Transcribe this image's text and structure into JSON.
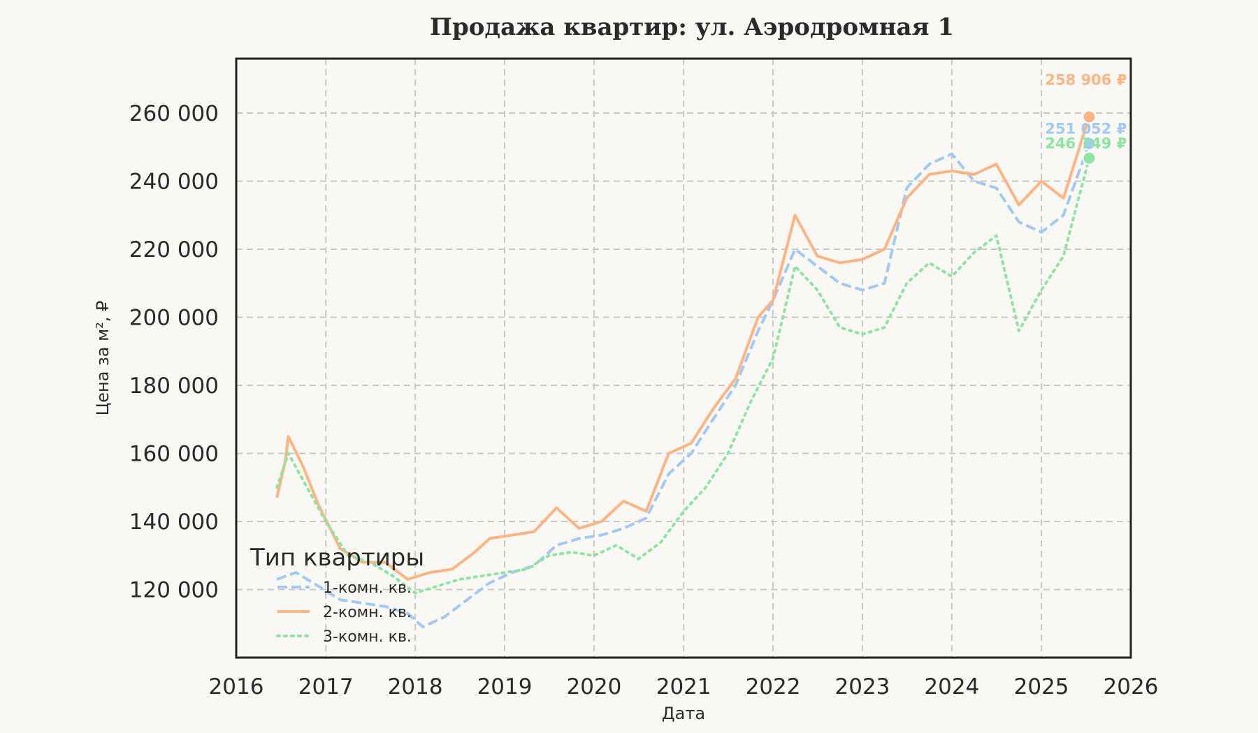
{
  "chart_data": {
    "type": "line",
    "title": "Продажа квартир: ул. Аэродромная 1",
    "xlabel": "Дата",
    "ylabel": "Цена за м², ₽",
    "xlim": [
      "2016-01-01",
      "2026-01-01"
    ],
    "ylim": [
      100000,
      276000
    ],
    "x_ticks": [
      "2016",
      "2017",
      "2018",
      "2019",
      "2020",
      "2021",
      "2022",
      "2023",
      "2024",
      "2025",
      "2026"
    ],
    "y_ticks": [
      120000,
      140000,
      160000,
      180000,
      200000,
      220000,
      240000,
      260000
    ],
    "y_tick_labels": [
      "120 000",
      "140 000",
      "160 000",
      "180 000",
      "200 000",
      "220 000",
      "240 000",
      "260 000"
    ],
    "grid": true,
    "legend": {
      "title": "Тип квартиры",
      "position": "bottom-left",
      "entries": [
        "1-комн. кв.",
        "2-комн. кв.",
        "3-комн. кв."
      ]
    },
    "series": [
      {
        "name": "1-комн. кв.",
        "color": "#a1c9f4",
        "style": "dashed",
        "points": [
          [
            "2016-06-15",
            123000
          ],
          [
            "2016-09-01",
            125000
          ],
          [
            "2016-12-01",
            121000
          ],
          [
            "2017-03-01",
            117000
          ],
          [
            "2017-06-01",
            116000
          ],
          [
            "2017-09-01",
            115000
          ],
          [
            "2017-12-01",
            113000
          ],
          [
            "2018-02-01",
            109000
          ],
          [
            "2018-05-01",
            112000
          ],
          [
            "2018-08-01",
            117000
          ],
          [
            "2018-11-01",
            122000
          ],
          [
            "2019-02-01",
            125000
          ],
          [
            "2019-05-01",
            127000
          ],
          [
            "2019-08-01",
            133000
          ],
          [
            "2019-11-01",
            135000
          ],
          [
            "2020-02-01",
            136000
          ],
          [
            "2020-05-01",
            138000
          ],
          [
            "2020-08-01",
            141000
          ],
          [
            "2020-11-01",
            154000
          ],
          [
            "2021-02-01",
            160000
          ],
          [
            "2021-05-01",
            170000
          ],
          [
            "2021-08-01",
            180000
          ],
          [
            "2021-11-01",
            196000
          ],
          [
            "2022-01-01",
            205000
          ],
          [
            "2022-04-01",
            220000
          ],
          [
            "2022-07-01",
            215000
          ],
          [
            "2022-10-01",
            210000
          ],
          [
            "2023-01-01",
            208000
          ],
          [
            "2023-04-01",
            210000
          ],
          [
            "2023-07-01",
            238000
          ],
          [
            "2023-10-01",
            245000
          ],
          [
            "2024-01-01",
            248000
          ],
          [
            "2024-04-01",
            240000
          ],
          [
            "2024-07-01",
            238000
          ],
          [
            "2024-10-01",
            228000
          ],
          [
            "2025-01-01",
            225000
          ],
          [
            "2025-04-01",
            230000
          ],
          [
            "2025-07-15",
            251052
          ]
        ],
        "last_value": 251052,
        "last_label": "251 052 ₽"
      },
      {
        "name": "2-комн. кв.",
        "color": "#ffb482",
        "style": "solid",
        "points": [
          [
            "2016-06-15",
            147000
          ],
          [
            "2016-07-20",
            158000
          ],
          [
            "2016-08-01",
            165000
          ],
          [
            "2016-10-01",
            156000
          ],
          [
            "2016-12-01",
            145000
          ],
          [
            "2017-03-01",
            132000
          ],
          [
            "2017-06-01",
            128000
          ],
          [
            "2017-09-01",
            128000
          ],
          [
            "2017-12-01",
            123000
          ],
          [
            "2018-03-01",
            125000
          ],
          [
            "2018-06-01",
            126000
          ],
          [
            "2018-09-01",
            131000
          ],
          [
            "2018-11-01",
            135000
          ],
          [
            "2019-02-01",
            136000
          ],
          [
            "2019-05-01",
            137000
          ],
          [
            "2019-08-01",
            144000
          ],
          [
            "2019-11-01",
            138000
          ],
          [
            "2020-02-01",
            140000
          ],
          [
            "2020-05-01",
            146000
          ],
          [
            "2020-08-01",
            143000
          ],
          [
            "2020-11-01",
            160000
          ],
          [
            "2021-02-01",
            163000
          ],
          [
            "2021-05-01",
            173000
          ],
          [
            "2021-08-01",
            182000
          ],
          [
            "2021-11-01",
            200000
          ],
          [
            "2022-01-01",
            205000
          ],
          [
            "2022-04-01",
            230000
          ],
          [
            "2022-07-01",
            218000
          ],
          [
            "2022-10-01",
            216000
          ],
          [
            "2023-01-01",
            217000
          ],
          [
            "2023-04-01",
            220000
          ],
          [
            "2023-07-01",
            235000
          ],
          [
            "2023-10-01",
            242000
          ],
          [
            "2024-01-01",
            243000
          ],
          [
            "2024-04-01",
            242000
          ],
          [
            "2024-07-01",
            245000
          ],
          [
            "2024-10-01",
            233000
          ],
          [
            "2025-01-01",
            240000
          ],
          [
            "2025-04-01",
            235000
          ],
          [
            "2025-07-15",
            258906
          ]
        ],
        "last_value": 258906,
        "last_label": "258 906 ₽"
      },
      {
        "name": "3-комн. кв.",
        "color": "#8de5a1",
        "style": "dotted",
        "points": [
          [
            "2016-06-15",
            150000
          ],
          [
            "2016-08-01",
            160000
          ],
          [
            "2016-10-01",
            152000
          ],
          [
            "2017-01-01",
            140000
          ],
          [
            "2017-04-01",
            130000
          ],
          [
            "2017-07-01",
            128000
          ],
          [
            "2017-10-01",
            124000
          ],
          [
            "2018-01-01",
            119000
          ],
          [
            "2018-04-01",
            121000
          ],
          [
            "2018-07-01",
            123000
          ],
          [
            "2018-10-01",
            124000
          ],
          [
            "2019-01-01",
            125000
          ],
          [
            "2019-04-01",
            126000
          ],
          [
            "2019-07-01",
            130000
          ],
          [
            "2019-10-01",
            131000
          ],
          [
            "2020-01-01",
            130000
          ],
          [
            "2020-04-01",
            133000
          ],
          [
            "2020-07-01",
            129000
          ],
          [
            "2020-10-01",
            134000
          ],
          [
            "2021-01-01",
            143000
          ],
          [
            "2021-04-01",
            150000
          ],
          [
            "2021-07-01",
            160000
          ],
          [
            "2021-10-01",
            175000
          ],
          [
            "2022-01-01",
            188000
          ],
          [
            "2022-04-01",
            215000
          ],
          [
            "2022-07-01",
            208000
          ],
          [
            "2022-10-01",
            197000
          ],
          [
            "2023-01-01",
            195000
          ],
          [
            "2023-04-01",
            197000
          ],
          [
            "2023-07-01",
            210000
          ],
          [
            "2023-10-01",
            216000
          ],
          [
            "2024-01-01",
            212000
          ],
          [
            "2024-04-01",
            219000
          ],
          [
            "2024-07-01",
            224000
          ],
          [
            "2024-10-01",
            196000
          ],
          [
            "2025-01-01",
            208000
          ],
          [
            "2025-04-01",
            218000
          ],
          [
            "2025-07-15",
            246749
          ]
        ],
        "last_value": 246749,
        "last_label": "246 749 ₽"
      }
    ]
  }
}
